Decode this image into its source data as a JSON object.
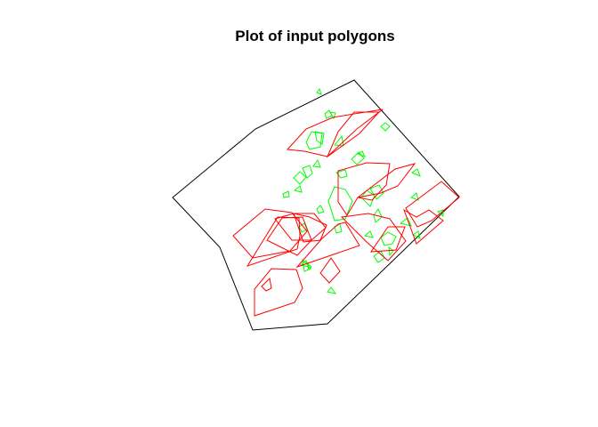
{
  "title": "Plot of input polygons",
  "colors": {
    "boundary": "#000000",
    "red_polygons": "#ff0000",
    "green_polygons": "#00ff00"
  }
}
